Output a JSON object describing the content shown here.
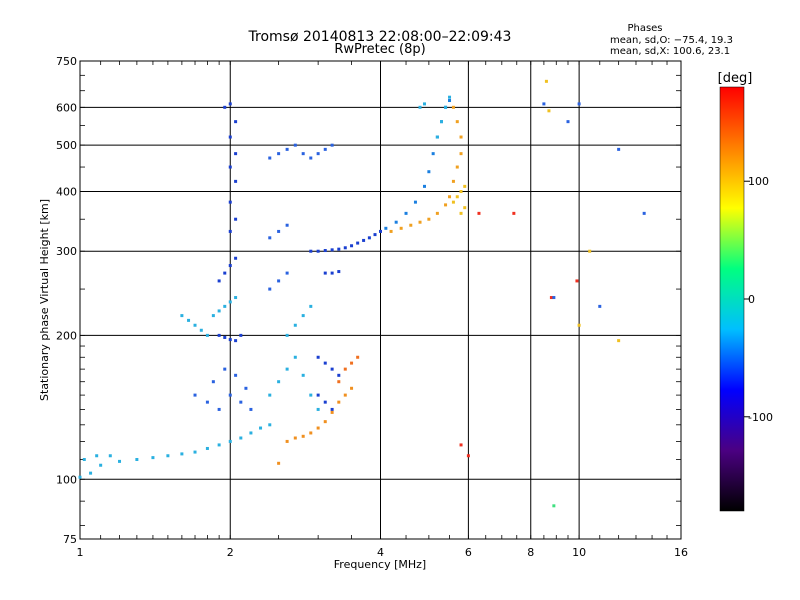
{
  "chart_data": {
    "type": "scatter",
    "title": "Tromsø 20140813 22:08:00–22:09:43",
    "subtitle": "RwPretec (8p)",
    "xlabel": "Frequency [MHz]",
    "ylabel": "Stationary phase Virtual Height [km]",
    "x_scale": "log",
    "y_scale": "log",
    "xlim": [
      1,
      16
    ],
    "ylim": [
      75,
      750
    ],
    "x_ticks": [
      1,
      2,
      4,
      6,
      8,
      10,
      16
    ],
    "y_ticks": [
      75,
      100,
      200,
      300,
      400,
      500,
      600,
      750
    ],
    "grid": true,
    "phase_box": {
      "title": "Phases",
      "line1": "mean, sd,O: −75.4, 19.3",
      "line2": "mean, sd,X: 100.6, 23.1"
    },
    "colorbar": {
      "label": "[deg]",
      "range": [
        -180,
        180
      ],
      "ticks": [
        100,
        0,
        -100
      ],
      "colormap": "rainbow",
      "colors": [
        "#000000",
        "#4b0082",
        "#0000ff",
        "#00bfff",
        "#00ff80",
        "#ffff00",
        "#ff8000",
        "#ff0000"
      ]
    },
    "series": [
      {
        "color": "#2ab0e0",
        "points": [
          [
            1.0,
            101
          ],
          [
            1.05,
            103
          ],
          [
            1.1,
            107
          ],
          [
            1.2,
            109
          ],
          [
            1.3,
            110
          ],
          [
            1.4,
            111
          ],
          [
            1.5,
            112
          ],
          [
            1.6,
            113
          ],
          [
            1.7,
            114
          ],
          [
            1.8,
            116
          ],
          [
            1.9,
            118
          ],
          [
            2.0,
            120
          ],
          [
            2.1,
            122
          ],
          [
            2.2,
            125
          ],
          [
            2.3,
            128
          ],
          [
            2.4,
            130
          ],
          [
            1.02,
            110
          ],
          [
            1.08,
            112
          ],
          [
            1.15,
            112
          ]
        ]
      },
      {
        "color": "#2ab0e0",
        "points": [
          [
            1.6,
            220
          ],
          [
            1.65,
            215
          ],
          [
            1.7,
            210
          ],
          [
            1.75,
            205
          ],
          [
            1.8,
            200
          ],
          [
            1.85,
            220
          ],
          [
            1.9,
            225
          ],
          [
            1.95,
            230
          ],
          [
            2.0,
            235
          ],
          [
            2.05,
            240
          ]
        ]
      },
      {
        "color": "#1a3fd0",
        "points": [
          [
            1.9,
            200
          ],
          [
            1.95,
            198
          ],
          [
            2.0,
            196
          ],
          [
            2.05,
            195
          ],
          [
            2.1,
            200
          ],
          [
            1.9,
            260
          ],
          [
            1.95,
            270
          ],
          [
            2.0,
            280
          ],
          [
            2.05,
            290
          ],
          [
            2.0,
            330
          ],
          [
            2.05,
            350
          ],
          [
            2.0,
            380
          ],
          [
            2.05,
            420
          ],
          [
            2.0,
            450
          ],
          [
            2.05,
            480
          ],
          [
            2.0,
            520
          ],
          [
            2.05,
            560
          ],
          [
            1.95,
            600
          ],
          [
            2.0,
            610
          ]
        ]
      },
      {
        "color": "#2a62e0",
        "points": [
          [
            1.7,
            150
          ],
          [
            1.8,
            145
          ],
          [
            1.9,
            140
          ],
          [
            2.0,
            150
          ],
          [
            2.1,
            145
          ],
          [
            2.2,
            140
          ],
          [
            1.85,
            160
          ],
          [
            1.95,
            170
          ],
          [
            2.05,
            165
          ],
          [
            2.15,
            155
          ]
        ]
      },
      {
        "color": "#2ab0e0",
        "points": [
          [
            2.4,
            150
          ],
          [
            2.5,
            160
          ],
          [
            2.6,
            170
          ],
          [
            2.7,
            180
          ],
          [
            2.8,
            165
          ],
          [
            2.9,
            150
          ],
          [
            3.0,
            140
          ],
          [
            2.6,
            200
          ],
          [
            2.7,
            210
          ],
          [
            2.8,
            220
          ],
          [
            2.9,
            230
          ]
        ]
      },
      {
        "color": "#2a62e0",
        "points": [
          [
            2.4,
            470
          ],
          [
            2.5,
            480
          ],
          [
            2.6,
            490
          ],
          [
            2.7,
            500
          ],
          [
            2.8,
            480
          ],
          [
            2.9,
            470
          ],
          [
            3.0,
            480
          ],
          [
            3.1,
            490
          ],
          [
            3.2,
            500
          ],
          [
            2.4,
            250
          ],
          [
            2.5,
            260
          ],
          [
            2.6,
            270
          ],
          [
            2.4,
            320
          ],
          [
            2.5,
            330
          ],
          [
            2.6,
            340
          ]
        ]
      },
      {
        "color": "#1a3fd0",
        "points": [
          [
            2.9,
            300
          ],
          [
            3.0,
            300
          ],
          [
            3.1,
            301
          ],
          [
            3.2,
            302
          ],
          [
            3.3,
            303
          ],
          [
            3.4,
            305
          ],
          [
            3.5,
            308
          ],
          [
            3.6,
            312
          ],
          [
            3.7,
            316
          ],
          [
            3.8,
            320
          ],
          [
            3.9,
            325
          ],
          [
            4.0,
            330
          ],
          [
            3.1,
            270
          ],
          [
            3.2,
            270
          ],
          [
            3.3,
            272
          ],
          [
            3.0,
            180
          ],
          [
            3.1,
            175
          ],
          [
            3.2,
            170
          ],
          [
            3.3,
            165
          ],
          [
            3.0,
            150
          ],
          [
            3.1,
            145
          ],
          [
            3.2,
            140
          ]
        ]
      },
      {
        "color": "#1a7fe0",
        "points": [
          [
            4.1,
            335
          ],
          [
            4.3,
            345
          ],
          [
            4.5,
            360
          ],
          [
            4.7,
            380
          ],
          [
            4.9,
            410
          ],
          [
            5.0,
            440
          ],
          [
            5.1,
            480
          ],
          [
            5.2,
            520
          ],
          [
            5.3,
            560
          ],
          [
            5.4,
            600
          ],
          [
            5.5,
            620
          ]
        ]
      },
      {
        "color": "#2ab0e0",
        "points": [
          [
            5.2,
            520
          ],
          [
            5.3,
            560
          ],
          [
            5.4,
            600
          ],
          [
            5.5,
            630
          ],
          [
            4.8,
            600
          ],
          [
            4.9,
            610
          ]
        ]
      },
      {
        "color": "#f0a020",
        "points": [
          [
            4.2,
            330
          ],
          [
            4.4,
            335
          ],
          [
            4.6,
            340
          ],
          [
            4.8,
            345
          ],
          [
            5.0,
            350
          ],
          [
            5.2,
            360
          ],
          [
            5.4,
            375
          ],
          [
            5.5,
            390
          ],
          [
            5.6,
            420
          ],
          [
            5.7,
            450
          ],
          [
            5.8,
            480
          ],
          [
            5.8,
            520
          ],
          [
            5.7,
            560
          ],
          [
            5.6,
            600
          ]
        ]
      },
      {
        "color": "#f0c020",
        "points": [
          [
            5.6,
            380
          ],
          [
            5.7,
            390
          ],
          [
            5.8,
            400
          ],
          [
            5.9,
            410
          ],
          [
            5.8,
            360
          ],
          [
            5.9,
            370
          ]
        ]
      },
      {
        "color": "#f09020",
        "points": [
          [
            2.6,
            120
          ],
          [
            2.7,
            122
          ],
          [
            2.8,
            123
          ],
          [
            2.9,
            125
          ],
          [
            3.0,
            128
          ],
          [
            3.1,
            132
          ],
          [
            3.2,
            138
          ],
          [
            3.3,
            145
          ],
          [
            3.4,
            150
          ],
          [
            3.5,
            155
          ],
          [
            2.5,
            108
          ]
        ]
      },
      {
        "color": "#f07020",
        "points": [
          [
            3.4,
            170
          ],
          [
            3.5,
            175
          ],
          [
            3.6,
            180
          ],
          [
            3.3,
            160
          ]
        ]
      },
      {
        "color": "#f03020",
        "points": [
          [
            6.3,
            360
          ],
          [
            7.4,
            360
          ],
          [
            8.8,
            240
          ],
          [
            9.9,
            260
          ],
          [
            6.0,
            112
          ],
          [
            5.8,
            118
          ]
        ]
      },
      {
        "color": "#f0c020",
        "points": [
          [
            8.6,
            680
          ],
          [
            8.7,
            590
          ],
          [
            10.5,
            300
          ],
          [
            10.0,
            210
          ],
          [
            12.0,
            195
          ]
        ]
      },
      {
        "color": "#2a62e0",
        "points": [
          [
            8.9,
            240
          ],
          [
            12.0,
            490
          ],
          [
            13.5,
            360
          ],
          [
            11.0,
            230
          ],
          [
            9.5,
            560
          ],
          [
            10.0,
            610
          ],
          [
            8.5,
            610
          ]
        ]
      },
      {
        "color": "#40e080",
        "points": [
          [
            8.9,
            88
          ]
        ]
      }
    ]
  }
}
